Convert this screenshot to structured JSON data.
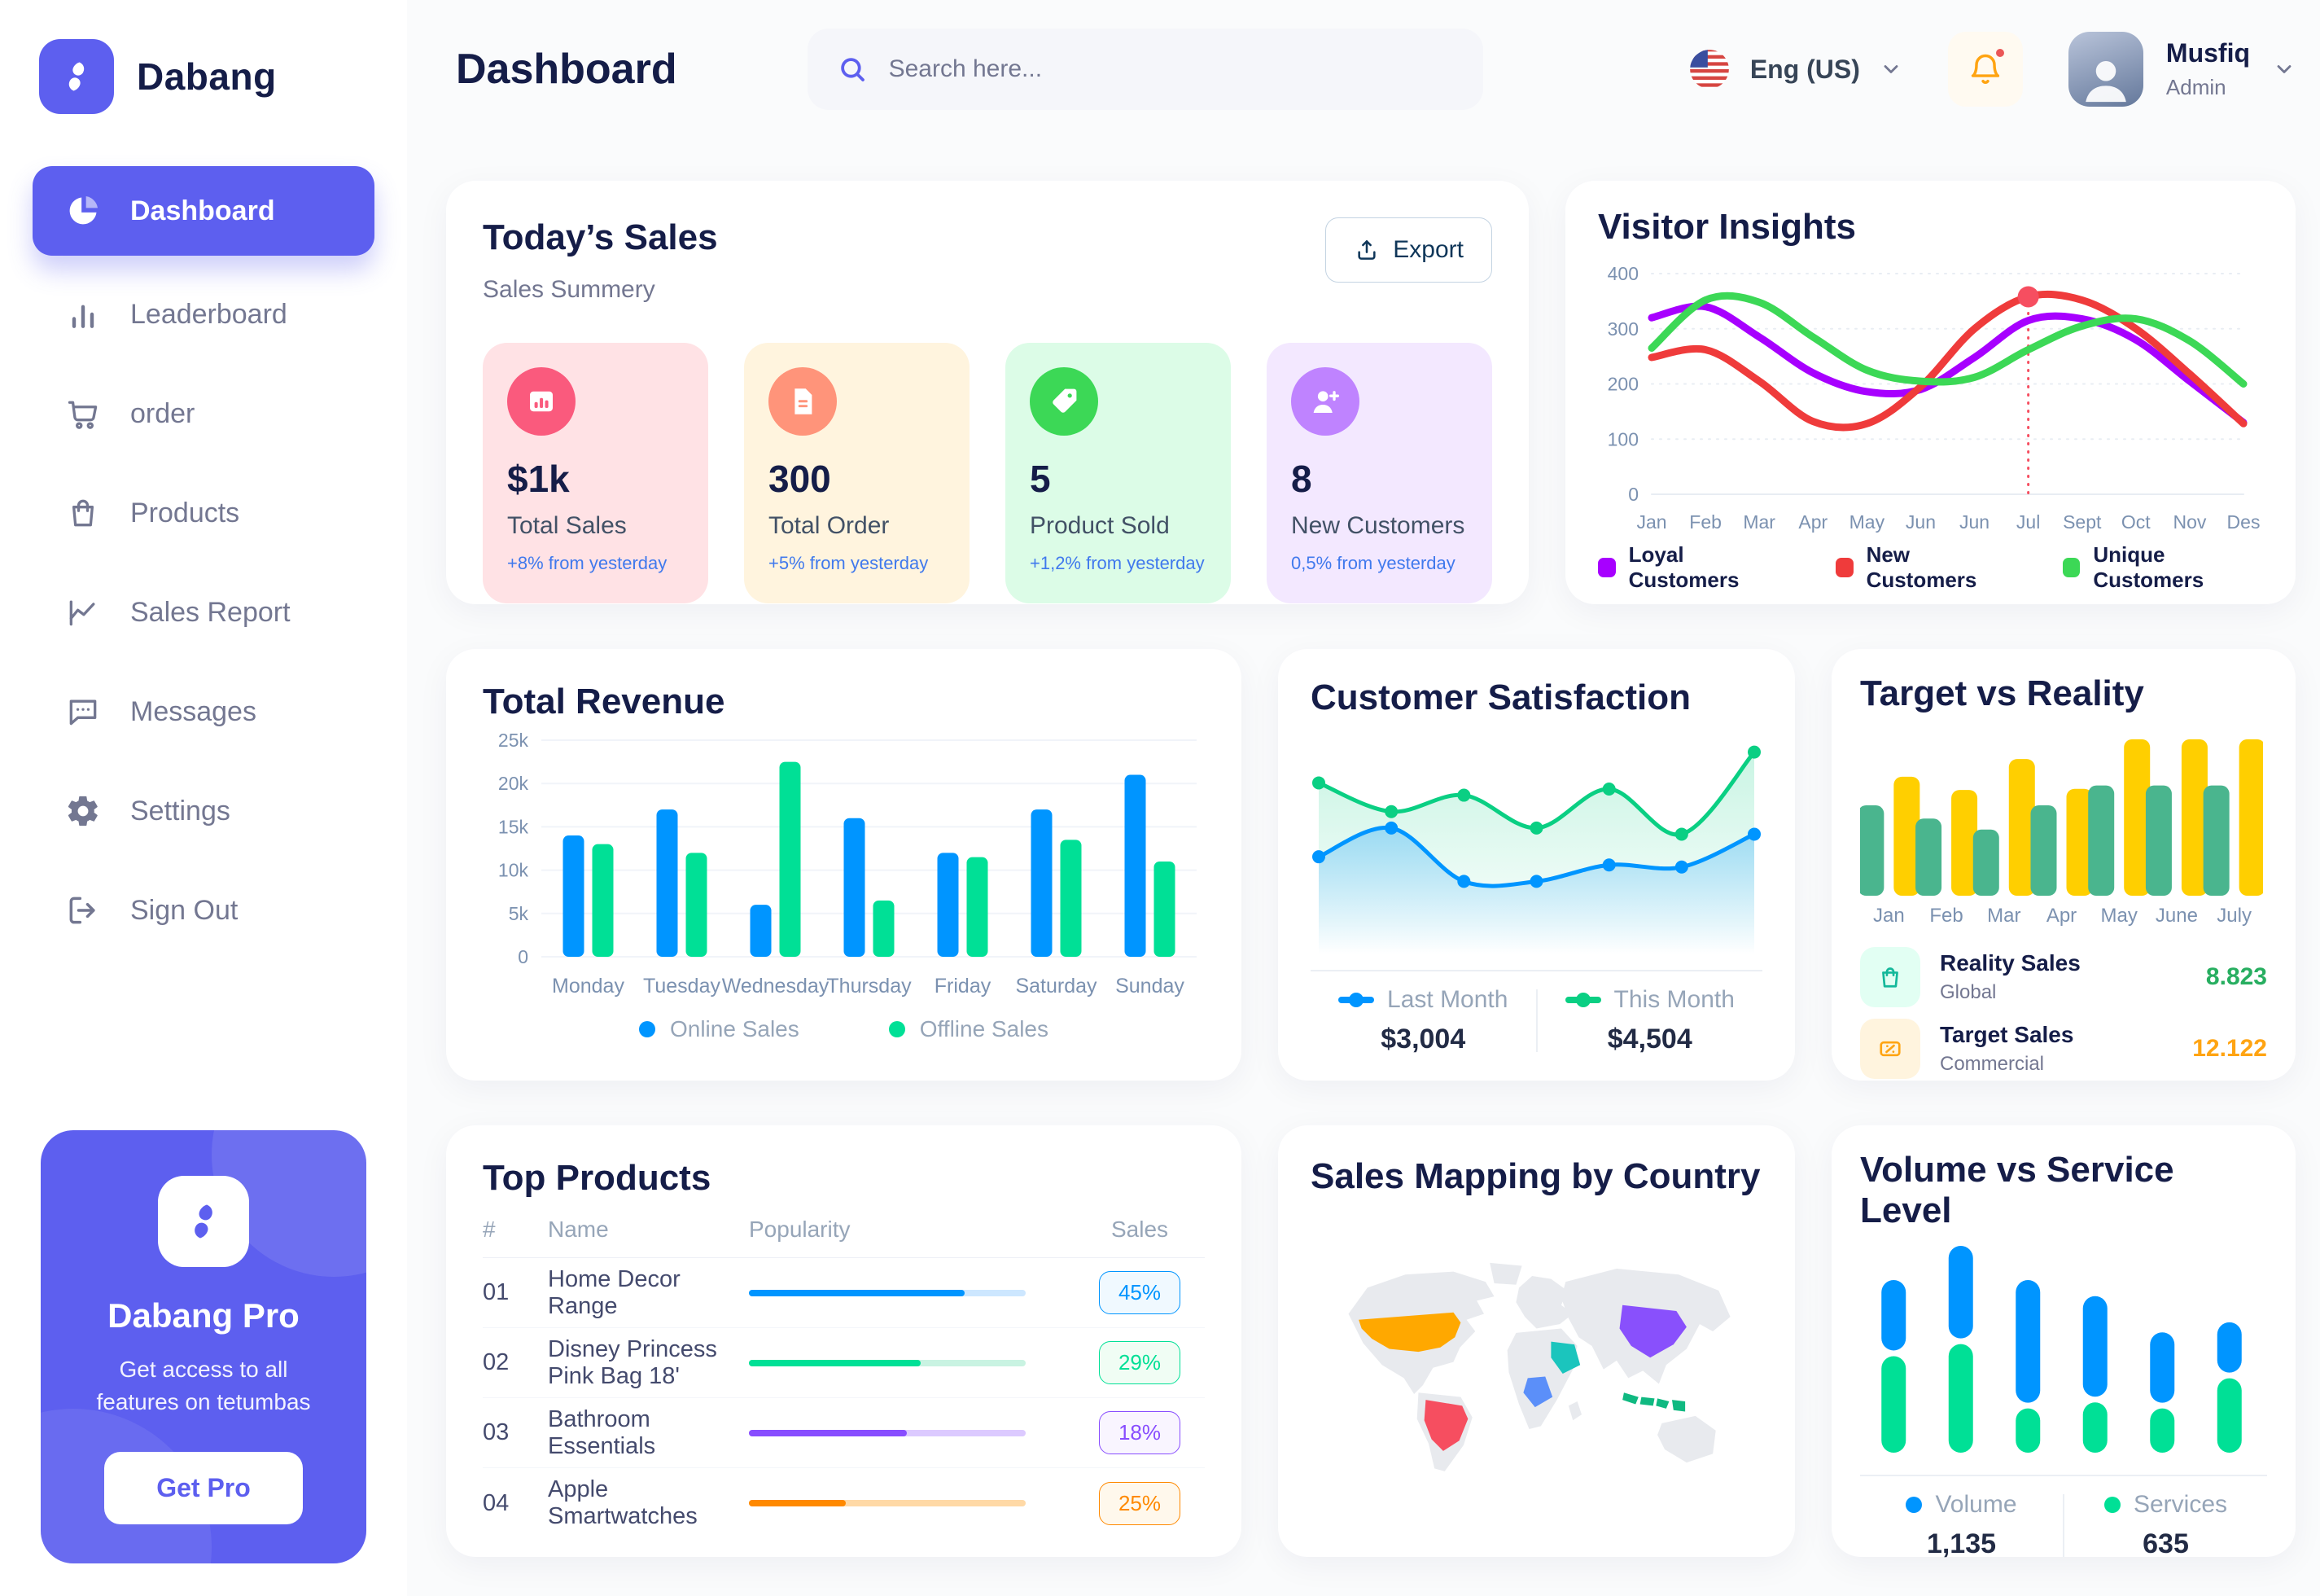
{
  "brand": {
    "name": "Dabang"
  },
  "header": {
    "page_title": "Dashboard",
    "search_placeholder": "Search here...",
    "language": "Eng (US)",
    "user_name": "Musfiq",
    "user_role": "Admin"
  },
  "sidebar": {
    "items": [
      {
        "label": "Dashboard",
        "icon": "pie",
        "active": true
      },
      {
        "label": "Leaderboard",
        "icon": "bars",
        "active": false
      },
      {
        "label": "order",
        "icon": "cart",
        "active": false
      },
      {
        "label": "Products",
        "icon": "bag",
        "active": false
      },
      {
        "label": "Sales Report",
        "icon": "chart",
        "active": false
      },
      {
        "label": "Messages",
        "icon": "chat",
        "active": false
      },
      {
        "label": "Settings",
        "icon": "gear",
        "active": false
      },
      {
        "label": "Sign Out",
        "icon": "signout",
        "active": false
      }
    ],
    "pro": {
      "title": "Dabang Pro",
      "subtitle": "Get access to all features on tetumbas",
      "cta": "Get Pro"
    }
  },
  "today_sales": {
    "title": "Today’s Sales",
    "subtitle": "Sales Summery",
    "export_label": "Export",
    "delta_color": "#4079ED",
    "cards": [
      {
        "value": "$1k",
        "label": "Total Sales",
        "delta": "+8% from yesterday",
        "bg": "#FFE2E5",
        "accent": "#FA5A7D",
        "icon": "chart-card"
      },
      {
        "value": "300",
        "label": "Total Order",
        "delta": "+5% from yesterday",
        "bg": "#FFF4DE",
        "accent": "#FF947A",
        "icon": "file-card"
      },
      {
        "value": "5",
        "label": "Product Sold",
        "delta": "+1,2% from yesterday",
        "bg": "#DCFCE7",
        "accent": "#3CD856",
        "icon": "tag-card"
      },
      {
        "value": "8",
        "label": "New Customers",
        "delta": "0,5% from yesterday",
        "bg": "#F3E8FF",
        "accent": "#BF83FF",
        "icon": "user-card"
      }
    ]
  },
  "chart_data": [
    {
      "id": "visitor_insights",
      "type": "line",
      "title": "Visitor Insights",
      "x_labels": [
        "Jan",
        "Feb",
        "Mar",
        "Apr",
        "May",
        "Jun",
        "Jun",
        "Jul",
        "Sept",
        "Oct",
        "Nov",
        "Des"
      ],
      "y_ticks": [
        0,
        100,
        200,
        300,
        400
      ],
      "ylim": [
        0,
        400
      ],
      "legend_position": "bottom",
      "grid": true,
      "series": [
        {
          "name": "Loyal Customers",
          "color": "#A700FF",
          "values": [
            320,
            340,
            285,
            220,
            186,
            190,
            248,
            315,
            318,
            280,
            205,
            130
          ]
        },
        {
          "name": "New Customers",
          "color": "#EF3B3B",
          "values": [
            248,
            262,
            205,
            132,
            128,
            195,
            300,
            358,
            352,
            300,
            218,
            128
          ]
        },
        {
          "name": "Unique Customers",
          "color": "#3CD856",
          "values": [
            265,
            352,
            348,
            285,
            225,
            205,
            212,
            262,
            305,
            318,
            278,
            200
          ]
        }
      ],
      "highlight": {
        "x_index": 7,
        "series": "New Customers",
        "value": 358,
        "color": "#F64E60"
      }
    },
    {
      "id": "total_revenue",
      "type": "bar",
      "title": "Total Revenue",
      "categories": [
        "Monday",
        "Tuesday",
        "Wednesday",
        "Thursday",
        "Friday",
        "Saturday",
        "Sunday"
      ],
      "y_tick_labels": [
        "0",
        "5k",
        "10k",
        "15k",
        "20k",
        "25k"
      ],
      "ylim": [
        0,
        25000
      ],
      "grid": true,
      "legend_position": "bottom",
      "series": [
        {
          "name": "Online Sales",
          "color": "#0095FF",
          "values": [
            14000,
            17000,
            6000,
            16000,
            12000,
            17000,
            21000
          ]
        },
        {
          "name": "Offline Sales",
          "color": "#00E096",
          "values": [
            13000,
            12000,
            22500,
            6500,
            11500,
            13500,
            11000
          ]
        }
      ]
    },
    {
      "id": "customer_satisfaction",
      "type": "area",
      "title": "Customer Satisfaction",
      "ylim": [
        0,
        100
      ],
      "series": [
        {
          "name": "Last Month",
          "color": "#0095FF",
          "total": "$3,004",
          "values": [
            42,
            56,
            30,
            30,
            38,
            37,
            53
          ]
        },
        {
          "name": "This Month",
          "color": "#0ACF83",
          "total": "$4,504",
          "values": [
            78,
            64,
            72,
            56,
            75,
            53,
            93
          ]
        }
      ]
    },
    {
      "id": "target_vs_reality",
      "type": "grouped-bar",
      "title": "Target vs Reality",
      "categories": [
        "Jan",
        "Feb",
        "Mar",
        "Apr",
        "May",
        "June",
        "July"
      ],
      "ylim": [
        0,
        15
      ],
      "series": [
        {
          "name": "Reality Sales",
          "subtitle": "Global",
          "color": "#4AB58E",
          "summary_value": "8.823",
          "summary_color": "#27AE60",
          "icon_bg": "#E2FFF3",
          "values": [
            8.2,
            7.0,
            6.0,
            8.2,
            10.0,
            10.0,
            10.0
          ]
        },
        {
          "name": "Target Sales",
          "subtitle": "Commercial",
          "color": "#FFCF00",
          "summary_value": "12.122",
          "summary_color": "#FFA412",
          "icon_bg": "#FFF4DE",
          "values": [
            10.8,
            9.6,
            12.4,
            9.7,
            14.2,
            14.2,
            14.2
          ]
        }
      ]
    },
    {
      "id": "sales_map",
      "type": "map",
      "title": "Sales Mapping by Country",
      "countries": [
        {
          "name": "United States",
          "color": "#FFA800"
        },
        {
          "name": "Brazil",
          "color": "#F64E60"
        },
        {
          "name": "China",
          "color": "#8950FC"
        },
        {
          "name": "Saudi Arabia",
          "color": "#1BC5BD"
        },
        {
          "name": "DR Congo",
          "color": "#5B8FF9"
        },
        {
          "name": "Indonesia",
          "color": "#10B981"
        }
      ]
    },
    {
      "id": "volume_vs_service",
      "type": "stacked-bar",
      "title": "Volume vs Service Level",
      "series": [
        {
          "name": "Volume",
          "color": "#0095FF",
          "total": "1,135",
          "values": [
            35,
            46,
            61,
            50,
            35,
            25
          ]
        },
        {
          "name": "Services",
          "color": "#00E096",
          "total": "635",
          "values": [
            48,
            54,
            22,
            25,
            22,
            37
          ]
        }
      ]
    }
  ],
  "top_products": {
    "title": "Top Products",
    "headers": [
      "#",
      "Name",
      "Popularity",
      "Sales"
    ],
    "rows": [
      {
        "num": "01",
        "name": "Home Decor Range",
        "popularity_pct": 78,
        "sales": "45%",
        "color": "#0095FF",
        "track": "#CDE7FF",
        "badge_bg": "#F0F9FF"
      },
      {
        "num": "02",
        "name": "Disney Princess Pink Bag 18'",
        "popularity_pct": 62,
        "sales": "29%",
        "color": "#00E096",
        "track": "#C9F3E2",
        "badge_bg": "#F0FDF4"
      },
      {
        "num": "03",
        "name": "Bathroom Essentials",
        "popularity_pct": 57,
        "sales": "18%",
        "color": "#884DFF",
        "track": "#DCCAFF",
        "badge_bg": "#F9F5FF"
      },
      {
        "num": "04",
        "name": "Apple Smartwatches",
        "popularity_pct": 35,
        "sales": "25%",
        "color": "#FF8900",
        "track": "#FFD9A6",
        "badge_bg": "#FFF8EC"
      }
    ]
  }
}
